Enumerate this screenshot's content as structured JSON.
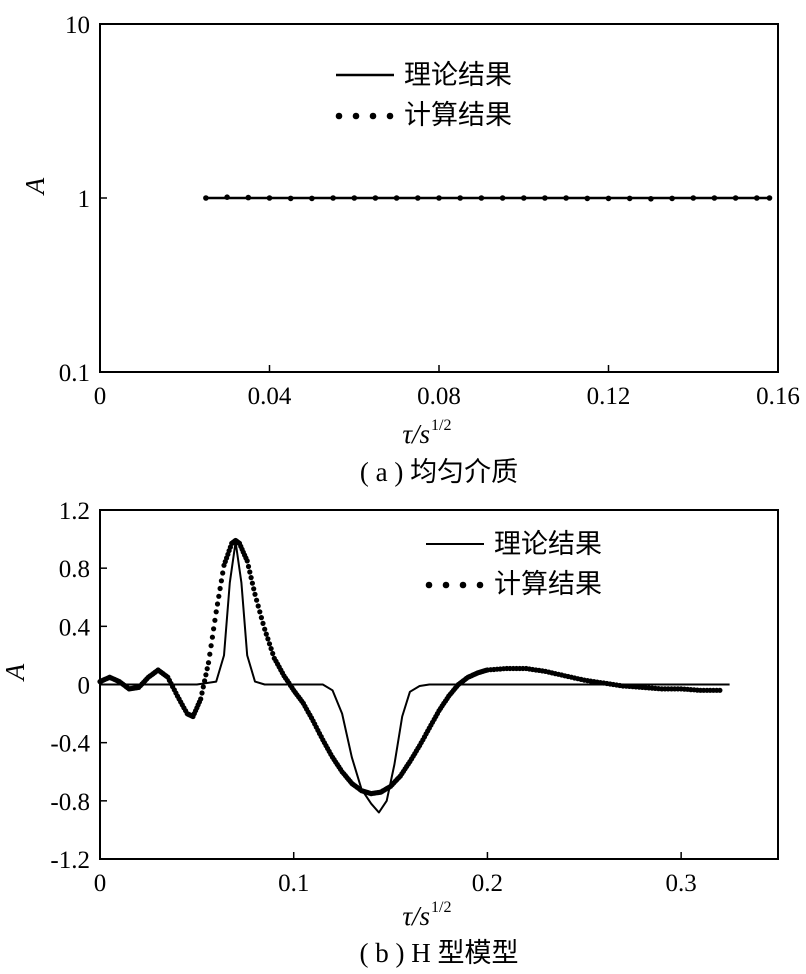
{
  "chart_data": [
    {
      "type": "line",
      "caption": "( a ) 均匀介质",
      "xlabel": "τ/s",
      "xlabel_sup": "1/2",
      "ylabel": "A",
      "yscale": "log",
      "xlim": [
        0,
        0.16
      ],
      "ylim": [
        0.1,
        10
      ],
      "xticks": [
        0,
        0.04,
        0.08,
        0.12,
        0.16
      ],
      "xtick_labels": [
        "0",
        "0.04",
        "0.08",
        "0.12",
        "0.16"
      ],
      "yticks": [
        0.1,
        1,
        10
      ],
      "ytick_labels": [
        "0.1",
        "1",
        "10"
      ],
      "legend_position": "top-center",
      "series": [
        {
          "name": "理论结果",
          "style": "solid",
          "x": [
            0.025,
            0.158
          ],
          "y": [
            1.0,
            1.0
          ]
        },
        {
          "name": "计算结果",
          "style": "dotted",
          "x": [
            0.025,
            0.03,
            0.035,
            0.04,
            0.045,
            0.05,
            0.055,
            0.06,
            0.065,
            0.07,
            0.075,
            0.08,
            0.085,
            0.09,
            0.095,
            0.1,
            0.105,
            0.11,
            0.115,
            0.12,
            0.125,
            0.13,
            0.135,
            0.14,
            0.145,
            0.15,
            0.155,
            0.158
          ],
          "y": [
            1.0,
            1.01,
            1.005,
            1.0,
            0.995,
            0.995,
            1.0,
            1.0,
            1.0,
            1.0,
            1.0,
            1.0,
            1.0,
            1.0,
            1.0,
            1.0,
            1.0,
            1.0,
            0.995,
            0.995,
            0.995,
            0.99,
            0.995,
            1.0,
            1.0,
            1.0,
            1.0,
            1.0
          ]
        }
      ]
    },
    {
      "type": "line",
      "caption": "( b ) H 型模型",
      "xlabel": "τ/s",
      "xlabel_sup": "1/2",
      "ylabel": "A",
      "yscale": "linear",
      "xlim": [
        0,
        0.35
      ],
      "ylim": [
        -1.2,
        1.2
      ],
      "xticks": [
        0,
        0.1,
        0.2,
        0.3
      ],
      "xtick_labels": [
        "0",
        "0.1",
        "0.2",
        "0.3"
      ],
      "yticks": [
        -1.2,
        -0.8,
        -0.4,
        0,
        0.4,
        0.8,
        1.2
      ],
      "ytick_labels": [
        "-1.2",
        "-0.8",
        "-0.4",
        "0",
        "0.4",
        "0.8",
        "1.2"
      ],
      "legend_position": "top-right",
      "series": [
        {
          "name": "理论结果",
          "style": "solid",
          "x": [
            0,
            0.05,
            0.06,
            0.064,
            0.067,
            0.07,
            0.073,
            0.076,
            0.08,
            0.085,
            0.1,
            0.115,
            0.12,
            0.125,
            0.13,
            0.135,
            0.14,
            0.144,
            0.148,
            0.152,
            0.156,
            0.16,
            0.165,
            0.17,
            0.2,
            0.25,
            0.3,
            0.325
          ],
          "y": [
            0,
            0,
            0.02,
            0.2,
            0.7,
            0.98,
            0.7,
            0.2,
            0.02,
            0,
            0,
            0,
            -0.04,
            -0.2,
            -0.5,
            -0.72,
            -0.82,
            -0.88,
            -0.8,
            -0.55,
            -0.22,
            -0.05,
            -0.01,
            0,
            0,
            0,
            0,
            0
          ]
        },
        {
          "name": "计算结果",
          "style": "dotted",
          "x": [
            0,
            0.005,
            0.01,
            0.015,
            0.02,
            0.025,
            0.03,
            0.035,
            0.04,
            0.045,
            0.048,
            0.052,
            0.056,
            0.06,
            0.064,
            0.068,
            0.07,
            0.072,
            0.076,
            0.08,
            0.085,
            0.09,
            0.095,
            0.1,
            0.105,
            0.11,
            0.115,
            0.12,
            0.125,
            0.13,
            0.135,
            0.14,
            0.145,
            0.15,
            0.155,
            0.16,
            0.165,
            0.17,
            0.175,
            0.18,
            0.185,
            0.19,
            0.195,
            0.2,
            0.21,
            0.22,
            0.23,
            0.24,
            0.25,
            0.26,
            0.27,
            0.28,
            0.29,
            0.3,
            0.31,
            0.32
          ],
          "y": [
            0.02,
            0.05,
            0.02,
            -0.03,
            -0.02,
            0.05,
            0.1,
            0.05,
            -0.08,
            -0.2,
            -0.22,
            -0.1,
            0.15,
            0.5,
            0.82,
            0.97,
            0.99,
            0.97,
            0.85,
            0.62,
            0.38,
            0.18,
            0.06,
            -0.04,
            -0.13,
            -0.25,
            -0.38,
            -0.5,
            -0.6,
            -0.68,
            -0.73,
            -0.75,
            -0.74,
            -0.7,
            -0.63,
            -0.53,
            -0.42,
            -0.3,
            -0.18,
            -0.08,
            0.0,
            0.05,
            0.08,
            0.1,
            0.11,
            0.11,
            0.09,
            0.06,
            0.03,
            0.01,
            -0.01,
            -0.02,
            -0.03,
            -0.03,
            -0.04,
            -0.04
          ]
        }
      ]
    }
  ]
}
